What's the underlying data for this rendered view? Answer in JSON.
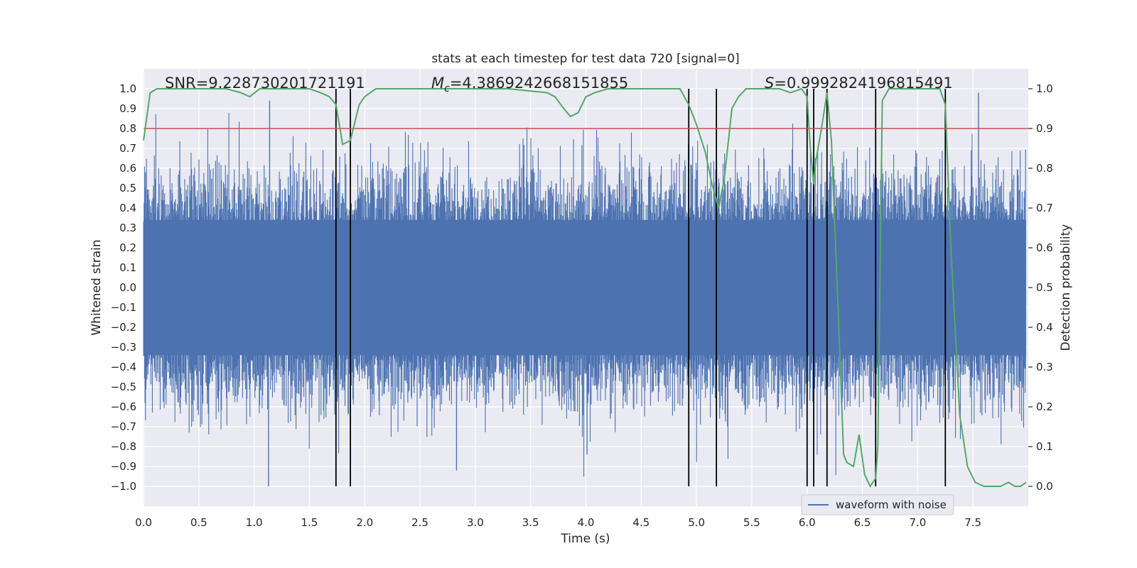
{
  "chart_data": {
    "type": "line",
    "title": "stats at each timestep for test data 720 [signal=0]",
    "xlabel": "Time (s)",
    "ylabel_left": "Whitened strain",
    "ylabel_right": "Detection probability",
    "xlim": [
      0.0,
      8.0
    ],
    "ylim_left": [
      -1.1,
      1.1
    ],
    "ylim_right": [
      -0.05,
      1.05
    ],
    "x_ticks": [
      "0.0",
      "0.5",
      "1.0",
      "1.5",
      "2.0",
      "2.5",
      "3.0",
      "3.5",
      "4.0",
      "4.5",
      "5.0",
      "5.5",
      "6.0",
      "6.5",
      "7.0",
      "7.5"
    ],
    "y_left_ticks": [
      "1.0",
      "0.9",
      "0.8",
      "0.7",
      "0.6",
      "0.5",
      "0.4",
      "0.3",
      "0.2",
      "0.1",
      "0.0",
      "−0.1",
      "−0.2",
      "−0.3",
      "−0.4",
      "−0.5",
      "−0.6",
      "−0.7",
      "−0.8",
      "−0.9",
      "−1.0"
    ],
    "y_right_ticks": [
      "1.0",
      "0.9",
      "0.8",
      "0.7",
      "0.6",
      "0.5",
      "0.4",
      "0.3",
      "0.2",
      "0.1",
      "0.0"
    ],
    "annotations": {
      "snr": "SNR=9.228730201721191",
      "mc_symbol": "M",
      "mc_sub": "c",
      "mc_value": "=4.3869242668151855",
      "s_symbol": "S",
      "s_value": "=0.9992824196815491"
    },
    "threshold": {
      "value": 0.9,
      "axis": "right",
      "color": "#c44e52"
    },
    "vertical_markers": [
      1.74,
      1.87,
      4.93,
      5.18,
      6.0,
      6.06,
      6.18,
      6.62,
      7.25
    ],
    "series": [
      {
        "name": "waveform with noise",
        "axis": "left",
        "color": "#4c72b0",
        "description": "dense whitened strain noise, envelope approx ±0.45, peaks to ±1.0",
        "notable_peaks": [
          [
            1.13,
            -1.0
          ],
          [
            1.14,
            0.94
          ],
          [
            4.01,
            -0.84
          ],
          [
            7.55,
            0.98
          ],
          [
            2.83,
            -0.92
          ],
          [
            6.62,
            -0.84
          ]
        ]
      },
      {
        "name": "detection probability",
        "axis": "right",
        "color": "#55a868",
        "x": [
          0.0,
          0.06,
          0.12,
          0.3,
          0.6,
          0.75,
          0.88,
          0.96,
          1.05,
          1.2,
          1.5,
          1.6,
          1.68,
          1.74,
          1.8,
          1.87,
          1.95,
          2.0,
          2.1,
          2.3,
          2.8,
          3.3,
          3.65,
          3.72,
          3.8,
          3.86,
          3.93,
          4.0,
          4.08,
          4.2,
          4.5,
          4.85,
          4.93,
          5.0,
          5.08,
          5.14,
          5.2,
          5.25,
          5.32,
          5.38,
          5.45,
          5.55,
          5.75,
          5.85,
          5.95,
          6.0,
          6.03,
          6.06,
          6.08,
          6.13,
          6.18,
          6.22,
          6.28,
          6.33,
          6.36,
          6.42,
          6.47,
          6.52,
          6.57,
          6.62,
          6.64,
          6.68,
          6.74,
          6.85,
          7.1,
          7.2,
          7.25,
          7.3,
          7.38,
          7.45,
          7.52,
          7.6,
          7.75,
          7.82,
          7.88,
          7.93,
          7.98
        ],
        "y": [
          0.87,
          0.99,
          1.0,
          1.0,
          1.0,
          1.0,
          0.99,
          0.98,
          1.0,
          1.0,
          1.0,
          0.99,
          0.98,
          0.96,
          0.86,
          0.87,
          0.96,
          0.98,
          1.0,
          1.0,
          1.0,
          1.0,
          0.99,
          0.98,
          0.95,
          0.93,
          0.94,
          0.98,
          0.99,
          1.0,
          1.0,
          1.0,
          0.96,
          0.91,
          0.84,
          0.76,
          0.7,
          0.77,
          0.95,
          0.98,
          1.0,
          1.0,
          1.0,
          0.99,
          1.0,
          0.98,
          0.85,
          0.76,
          0.82,
          0.9,
          0.99,
          0.87,
          0.45,
          0.08,
          0.06,
          0.05,
          0.13,
          0.03,
          0.0,
          0.02,
          0.1,
          0.97,
          1.0,
          1.0,
          1.0,
          1.0,
          0.96,
          0.6,
          0.18,
          0.05,
          0.01,
          0.0,
          0.0,
          0.01,
          0.0,
          0.0,
          0.01
        ]
      }
    ],
    "legend": {
      "entry": "waveform with noise",
      "placement": "bottom-right"
    }
  },
  "colors": {
    "plot_bg": "#eaeaf2",
    "grid": "#ffffff",
    "vline": "#000000"
  }
}
